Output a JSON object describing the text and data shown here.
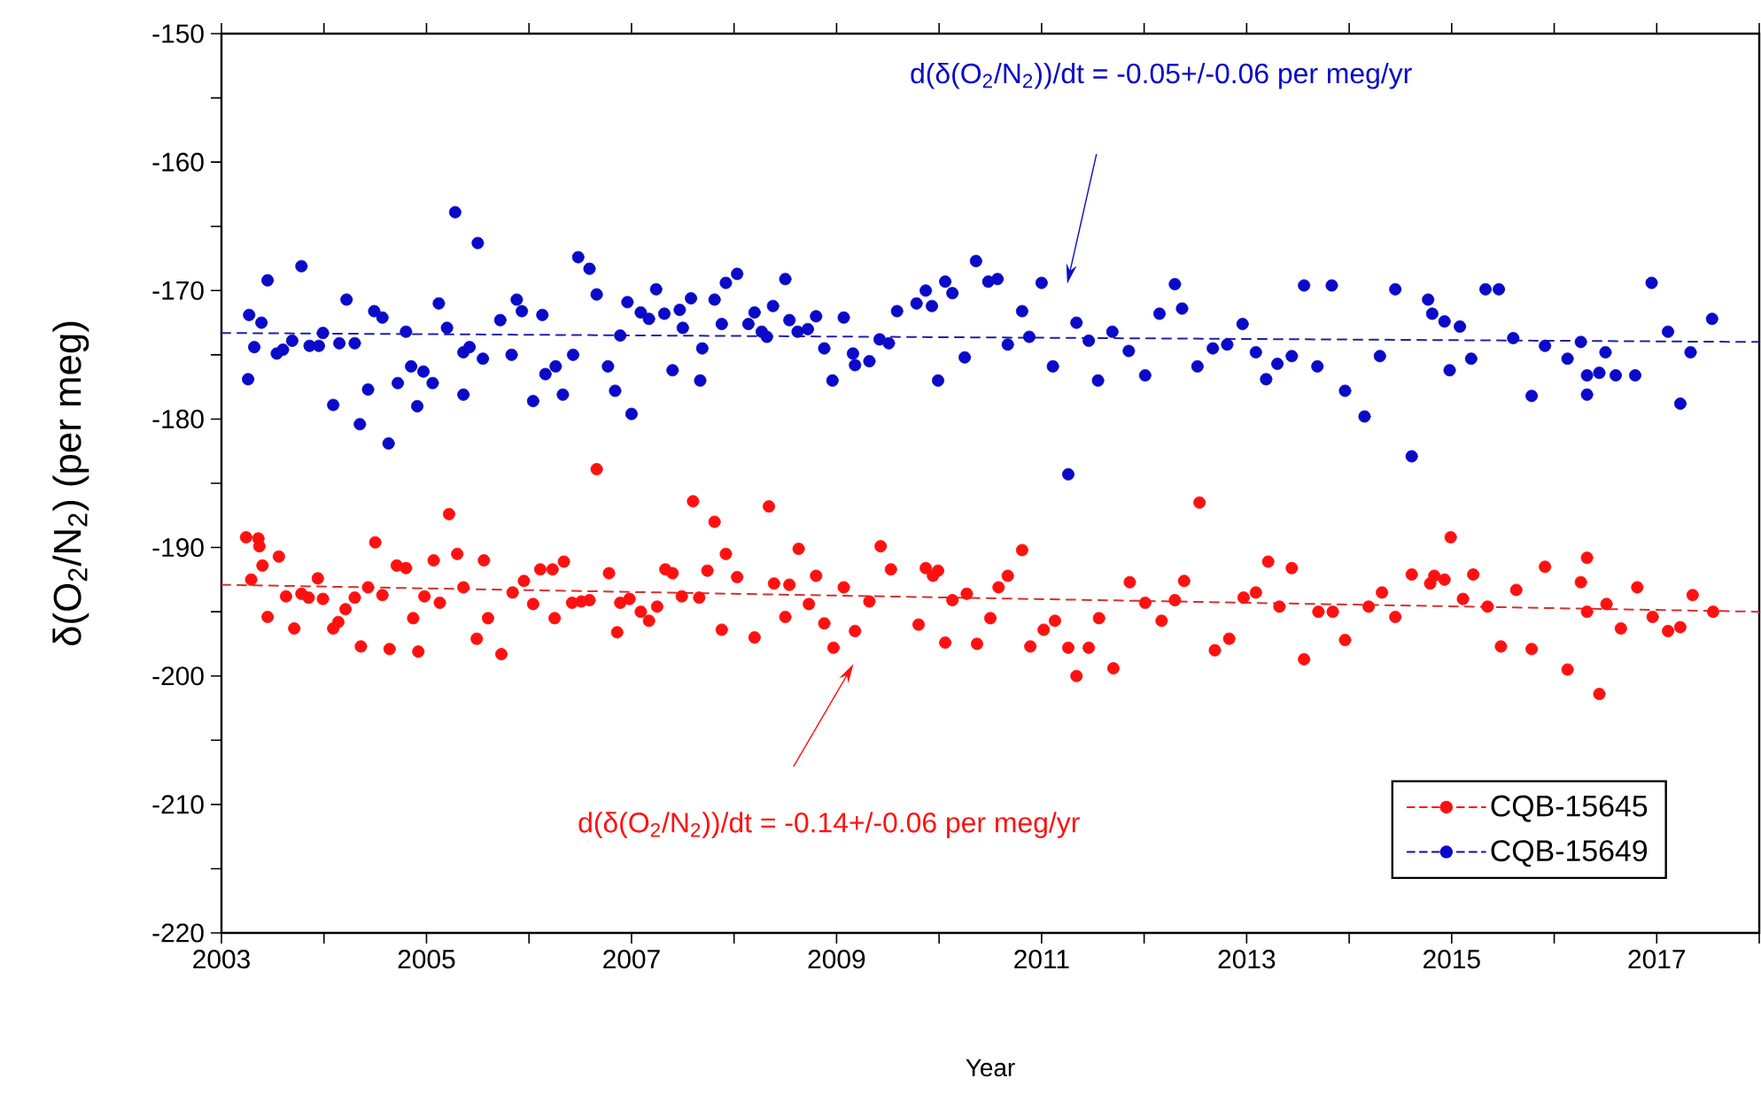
{
  "chart_data": {
    "type": "scatter",
    "xlabel": "Year",
    "ylabel": "δ(O$_{2}$/N$_{2}$) (per meg)",
    "xlim": [
      2003,
      2018
    ],
    "ylim": [
      -220,
      -150
    ],
    "xticks": [
      2003,
      {
        "value": 2004,
        "label": null
      },
      2005,
      {
        "value": 2006,
        "label": null
      },
      2007,
      {
        "value": 2008,
        "label": null
      },
      2009,
      {
        "value": 2010,
        "label": null
      },
      2011,
      {
        "value": 2012,
        "label": null
      },
      2013,
      {
        "value": 2014,
        "label": null
      },
      2015,
      {
        "value": 2016,
        "label": null
      },
      2017,
      {
        "value": 2018,
        "label": null
      }
    ],
    "yticks": [
      -220,
      {
        "value": -215,
        "label": null
      },
      -210,
      {
        "value": -205,
        "label": null
      },
      -200,
      {
        "value": -195,
        "label": null
      },
      -190,
      {
        "value": -185,
        "label": null
      },
      -180,
      {
        "value": -175,
        "label": null
      },
      -170,
      {
        "value": -165,
        "label": null
      },
      -160,
      {
        "value": -155,
        "label": null
      },
      -150
    ],
    "marker": "circle",
    "legend": "bottom right",
    "series": [
      {
        "name": "CQB-15645",
        "color": "#ff1010",
        "x": [
          2003.24,
          2003.36,
          2003.37,
          2003.29,
          2003.4,
          2003.45,
          2003.56,
          2003.63,
          2003.71,
          2003.78,
          2003.85,
          2003.94,
          2003.99,
          2004.09,
          2004.14,
          2004.21,
          2004.3,
          2004.36,
          2004.43,
          2004.5,
          2004.57,
          2004.64,
          2004.71,
          2004.8,
          2004.87,
          2004.92,
          2004.98,
          2005.07,
          2005.13,
          2005.22,
          2005.3,
          2005.36,
          2005.49,
          2005.56,
          2005.6,
          2005.73,
          2005.84,
          2005.95,
          2006.04,
          2006.11,
          2006.23,
          2006.25,
          2006.34,
          2006.42,
          2006.51,
          2006.59,
          2006.66,
          2006.78,
          2006.86,
          2006.89,
          2006.98,
          2007.09,
          2007.17,
          2007.25,
          2007.33,
          2007.4,
          2007.49,
          2007.6,
          2007.66,
          2007.74,
          2007.81,
          2007.88,
          2007.92,
          2008.03,
          2008.2,
          2008.34,
          2008.39,
          2008.5,
          2008.54,
          2008.63,
          2008.73,
          2008.8,
          2008.88,
          2008.97,
          2009.07,
          2009.18,
          2009.32,
          2009.43,
          2009.53,
          2009.8,
          2009.87,
          2009.94,
          2009.99,
          2010.06,
          2010.13,
          2010.27,
          2010.37,
          2010.5,
          2010.58,
          2010.67,
          2010.81,
          2010.89,
          2011.02,
          2011.13,
          2011.26,
          2011.34,
          2011.46,
          2011.56,
          2011.7,
          2011.86,
          2012.01,
          2012.17,
          2012.3,
          2012.39,
          2012.54,
          2012.69,
          2012.83,
          2012.97,
          2013.09,
          2013.21,
          2013.32,
          2013.44,
          2013.56,
          2013.7,
          2013.84,
          2013.96,
          2014.19,
          2014.32,
          2014.45,
          2014.61,
          2014.79,
          2014.83,
          2014.93,
          2014.99,
          2015.11,
          2015.21,
          2015.35,
          2015.48,
          2015.63,
          2015.78,
          2015.91,
          2016.13,
          2016.26,
          2016.32,
          2016.32,
          2016.44,
          2016.51,
          2016.65,
          2016.81,
          2016.96,
          2017.11,
          2017.23,
          2017.35,
          2017.55
        ],
        "values": [
          -189.2,
          -189.3,
          -189.9,
          -192.5,
          -191.4,
          -195.4,
          -190.7,
          -193.8,
          -196.3,
          -193.6,
          -193.9,
          -192.4,
          -194.0,
          -196.3,
          -195.8,
          -194.8,
          -193.9,
          -197.7,
          -193.1,
          -189.6,
          -193.7,
          -197.9,
          -191.4,
          -191.6,
          -195.5,
          -198.1,
          -193.8,
          -191.0,
          -194.3,
          -187.4,
          -190.5,
          -193.1,
          -197.1,
          -191.0,
          -195.5,
          -198.3,
          -193.5,
          -192.6,
          -194.4,
          -191.7,
          -191.7,
          -195.5,
          -191.1,
          -194.3,
          -194.2,
          -194.1,
          -183.9,
          -192.0,
          -196.6,
          -194.3,
          -194.0,
          -195.0,
          -195.7,
          -194.6,
          -191.7,
          -192.0,
          -193.8,
          -186.4,
          -193.9,
          -191.8,
          -188.0,
          -196.4,
          -190.5,
          -192.3,
          -197.0,
          -186.8,
          -192.8,
          -195.4,
          -192.9,
          -190.1,
          -194.4,
          -192.2,
          -195.9,
          -197.8,
          -193.1,
          -196.5,
          -194.2,
          -189.9,
          -191.7,
          -196.0,
          -191.6,
          -192.2,
          -191.8,
          -197.4,
          -194.1,
          -193.6,
          -197.5,
          -195.5,
          -193.1,
          -192.2,
          -190.2,
          -197.7,
          -196.4,
          -195.7,
          -197.8,
          -200.0,
          -197.8,
          -195.5,
          -199.4,
          -192.7,
          -194.3,
          -195.7,
          -194.1,
          -192.6,
          -186.5,
          -198.0,
          -197.1,
          -193.9,
          -193.5,
          -191.1,
          -194.6,
          -191.6,
          -198.7,
          -195.0,
          -195.0,
          -197.2,
          -194.6,
          -193.5,
          -195.4,
          -192.1,
          -192.8,
          -192.2,
          -192.5,
          -189.2,
          -194.0,
          -192.1,
          -194.6,
          -197.7,
          -193.3,
          -197.9,
          -191.5,
          -199.5,
          -192.7,
          -190.8,
          -195.0,
          -201.4,
          -194.4,
          -196.3,
          -193.1,
          -195.4,
          -196.5,
          -196.2,
          -193.7,
          -195.0
        ]
      },
      {
        "name": "CQB-15649",
        "color": "#0a0ac8",
        "x": [
          2003.26,
          2003.27,
          2003.32,
          2003.39,
          2003.45,
          2003.54,
          2003.6,
          2003.69,
          2003.78,
          2003.86,
          2003.95,
          2003.99,
          2004.09,
          2004.15,
          2004.22,
          2004.3,
          2004.35,
          2004.43,
          2004.49,
          2004.57,
          2004.63,
          2004.72,
          2004.8,
          2004.85,
          2004.91,
          2004.97,
          2005.06,
          2005.12,
          2005.2,
          2005.28,
          2005.36,
          2005.36,
          2005.42,
          2005.5,
          2005.55,
          2005.72,
          2005.83,
          2005.88,
          2005.93,
          2006.04,
          2006.13,
          2006.16,
          2006.26,
          2006.33,
          2006.43,
          2006.48,
          2006.59,
          2006.66,
          2006.77,
          2006.84,
          2006.89,
          2006.96,
          2007.0,
          2007.09,
          2007.17,
          2007.24,
          2007.32,
          2007.4,
          2007.47,
          2007.5,
          2007.58,
          2007.67,
          2007.69,
          2007.81,
          2007.88,
          2007.92,
          2008.03,
          2008.14,
          2008.2,
          2008.27,
          2008.32,
          2008.38,
          2008.5,
          2008.54,
          2008.62,
          2008.72,
          2008.8,
          2008.88,
          2008.96,
          2009.07,
          2009.16,
          2009.18,
          2009.32,
          2009.42,
          2009.51,
          2009.59,
          2009.78,
          2009.87,
          2009.93,
          2009.99,
          2010.06,
          2010.13,
          2010.25,
          2010.36,
          2010.48,
          2010.57,
          2010.67,
          2010.81,
          2010.88,
          2011.0,
          2011.11,
          2011.26,
          2011.34,
          2011.46,
          2011.55,
          2011.69,
          2011.85,
          2012.01,
          2012.15,
          2012.3,
          2012.37,
          2012.52,
          2012.67,
          2012.81,
          2012.96,
          2013.09,
          2013.19,
          2013.3,
          2013.44,
          2013.56,
          2013.69,
          2013.83,
          2013.96,
          2014.15,
          2014.3,
          2014.45,
          2014.61,
          2014.77,
          2014.81,
          2014.93,
          2014.98,
          2015.08,
          2015.19,
          2015.33,
          2015.46,
          2015.6,
          2015.78,
          2015.91,
          2016.13,
          2016.26,
          2016.32,
          2016.32,
          2016.44,
          2016.5,
          2016.6,
          2016.79,
          2016.95,
          2017.11,
          2017.23,
          2017.33,
          2017.54
        ],
        "values": [
          -176.9,
          -171.9,
          -174.4,
          -172.5,
          -169.2,
          -174.9,
          -174.6,
          -173.9,
          -168.1,
          -174.3,
          -174.3,
          -173.3,
          -178.9,
          -174.1,
          -170.7,
          -174.1,
          -180.4,
          -177.7,
          -171.6,
          -172.1,
          -181.9,
          -177.2,
          -173.2,
          -175.9,
          -179.0,
          -176.3,
          -177.2,
          -171.0,
          -172.9,
          -163.9,
          -178.1,
          -174.8,
          -174.4,
          -166.3,
          -175.3,
          -172.3,
          -175.0,
          -170.7,
          -171.6,
          -178.6,
          -171.9,
          -176.5,
          -175.9,
          -178.1,
          -175.0,
          -167.4,
          -168.3,
          -170.3,
          -175.9,
          -177.8,
          -173.5,
          -170.9,
          -179.6,
          -171.7,
          -172.2,
          -169.9,
          -171.8,
          -176.2,
          -171.5,
          -172.9,
          -170.6,
          -177.0,
          -174.5,
          -170.7,
          -172.6,
          -169.4,
          -168.7,
          -172.6,
          -171.7,
          -173.2,
          -173.6,
          -171.2,
          -169.1,
          -172.3,
          -173.2,
          -173.0,
          -172.0,
          -174.5,
          -177.0,
          -172.1,
          -174.9,
          -175.8,
          -175.5,
          -173.8,
          -174.1,
          -171.6,
          -171.0,
          -170.0,
          -171.2,
          -177.0,
          -169.3,
          -170.2,
          -175.2,
          -167.7,
          -169.3,
          -169.1,
          -174.2,
          -171.6,
          -173.6,
          -169.4,
          -175.9,
          -184.3,
          -172.5,
          -173.9,
          -177.0,
          -173.2,
          -174.7,
          -176.6,
          -171.8,
          -169.5,
          -171.4,
          -175.9,
          -174.5,
          -174.2,
          -172.6,
          -174.8,
          -176.9,
          -175.7,
          -175.1,
          -169.6,
          -175.9,
          -169.6,
          -177.8,
          -179.8,
          -175.1,
          -169.9,
          -182.9,
          -170.7,
          -171.8,
          -172.4,
          -176.2,
          -172.8,
          -175.3,
          -169.9,
          -169.9,
          -173.7,
          -178.2,
          -174.3,
          -175.3,
          -174.0,
          -176.6,
          -178.1,
          -176.4,
          -174.8,
          -176.6,
          -176.6,
          -169.4,
          -173.2,
          -178.8,
          -174.8,
          -172.2
        ]
      },
      {
        "type": "line",
        "color": "#d83030",
        "line_style": "dashed",
        "marker": "none",
        "x": [
          2003,
          2018
        ],
        "values": [
          -192.9,
          -195.0
        ]
      },
      {
        "type": "line",
        "color": "#2020a8",
        "line_style": "dashed",
        "marker": "none",
        "x": [
          2003,
          2018
        ],
        "values": [
          -173.3,
          -174.0
        ]
      }
    ],
    "annotations": [
      "d(δ(O$_{2}$/N$_{2}$))/dt = -0.05+/-0.06 per meg/yr",
      "d(δ(O$_{2}$/N$_{2}$))/dt = -0.14+/-0.06 per meg/yr"
    ]
  }
}
